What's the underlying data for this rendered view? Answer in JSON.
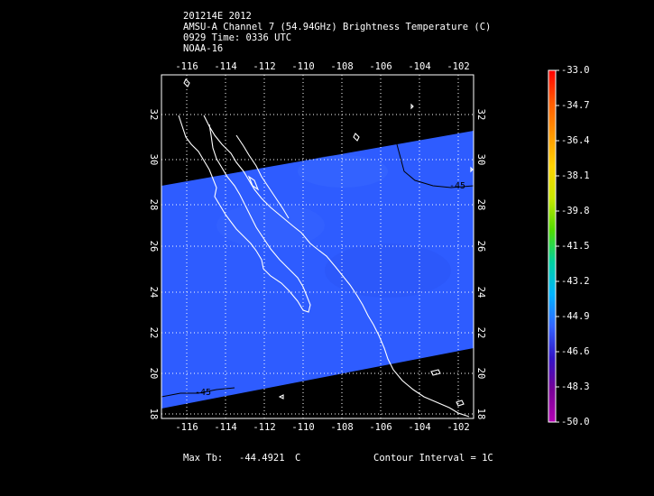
{
  "header": {
    "line1": "201214E 2012",
    "line2": "AMSU-A Channel 7 (54.94GHz) Brightness Temperature (C)",
    "line3": "0929 Time: 0336 UTC",
    "line4": "NOAA-16"
  },
  "map": {
    "lon_ticks": [
      "-116",
      "-114",
      "-112",
      "-110",
      "-108",
      "-106",
      "-104",
      "-102"
    ],
    "lat_ticks": [
      "18",
      "20",
      "22",
      "24",
      "26",
      "28",
      "30",
      "32"
    ],
    "lon_range": [
      -117.2,
      -101.2
    ],
    "lat_range": [
      17.8,
      33.3
    ],
    "swath_color": "#2e5cff",
    "contour_labels": [
      "-45",
      "-45"
    ]
  },
  "colorbar": {
    "labels": [
      "-33.0",
      "-34.7",
      "-36.4",
      "-38.1",
      "-39.8",
      "-41.5",
      "-43.2",
      "-44.9",
      "-46.6",
      "-48.3",
      "-50.0"
    ],
    "colors": [
      "#ff0000",
      "#ff5a00",
      "#ff9600",
      "#ffd200",
      "#c8e600",
      "#50dc00",
      "#00d2a0",
      "#00b4ff",
      "#3264ff",
      "#3214c8",
      "#780096",
      "#b400b4"
    ]
  },
  "footer": {
    "max_tb_label": "Max Tb:",
    "max_tb_value": "-44.4921",
    "max_tb_unit": "C",
    "contour_interval": "Contour Interval = 1C"
  }
}
